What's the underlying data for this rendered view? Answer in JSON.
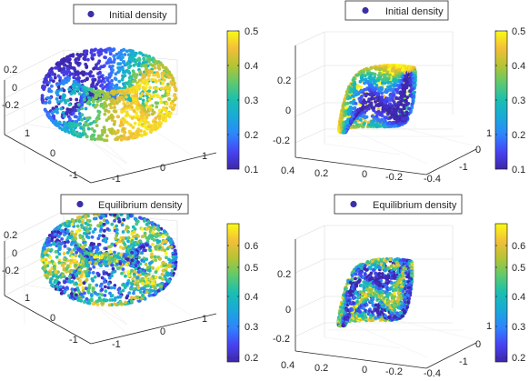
{
  "figure": {
    "colormap": [
      "#3e26a8",
      "#4743f4",
      "#2d85fe",
      "#19a9d9",
      "#19bfb1",
      "#5fc96e",
      "#b4c433",
      "#f3bf39",
      "#f9fb14"
    ],
    "marker_color": "#3b2fa8",
    "grid_color": "#d9d9d9",
    "axis_color": "#262626"
  },
  "chart_data": [
    {
      "type": "scatter3d",
      "shape": "torus",
      "legend": [
        "Initial density"
      ],
      "xticks": [
        "-1",
        "0",
        "1"
      ],
      "yticks": [
        "-1",
        "0",
        "1"
      ],
      "zticks": [
        "-0.2",
        "0",
        "0.2"
      ],
      "zlim": [
        -0.3,
        0.3
      ],
      "colorbar": {
        "ticks": [
          "0.1",
          "0.2",
          "0.3",
          "0.4",
          "0.5"
        ],
        "range": [
          0.1,
          0.5
        ]
      },
      "value_range": [
        0.1,
        0.5
      ],
      "grid": true,
      "legend_location": "top"
    },
    {
      "type": "scatter3d",
      "shape": "klein",
      "legend": [
        "Initial density"
      ],
      "xticks": [
        "0.4",
        "0.2",
        "0",
        "-0.2",
        "-0.4"
      ],
      "yticks": [
        "-1",
        "0",
        "1"
      ],
      "zticks": [
        "-0.2",
        "0",
        "0.2"
      ],
      "zlim": [
        -0.3,
        0.3
      ],
      "colorbar": {
        "ticks": [
          "0.1",
          "0.2",
          "0.3",
          "0.4",
          "0.5"
        ],
        "range": [
          0.1,
          0.5
        ]
      },
      "value_range": [
        0.1,
        0.5
      ],
      "grid": true,
      "legend_location": "top"
    },
    {
      "type": "scatter3d",
      "shape": "torus",
      "legend": [
        "Equilibrium density"
      ],
      "xticks": [
        "-1",
        "0",
        "1"
      ],
      "yticks": [
        "-1",
        "0",
        "1"
      ],
      "zticks": [
        "-0.2",
        "0",
        "0.2"
      ],
      "zlim": [
        -0.3,
        0.3
      ],
      "colorbar": {
        "ticks": [
          "0.2",
          "0.3",
          "0.4",
          "0.5",
          "0.6"
        ],
        "range": [
          0.15,
          0.7
        ]
      },
      "value_range": [
        0.15,
        0.7
      ],
      "grid": true,
      "legend_location": "top"
    },
    {
      "type": "scatter3d",
      "shape": "klein",
      "legend": [
        "Equilibrium density"
      ],
      "xticks": [
        "0.4",
        "0.2",
        "0",
        "-0.2",
        "-0.4"
      ],
      "yticks": [
        "-1",
        "0",
        "1"
      ],
      "zticks": [
        "-0.2",
        "0",
        "0.2"
      ],
      "zlim": [
        -0.3,
        0.3
      ],
      "colorbar": {
        "ticks": [
          "0.2",
          "0.3",
          "0.4",
          "0.5",
          "0.6"
        ],
        "range": [
          0.15,
          0.7
        ]
      },
      "value_range": [
        0.15,
        0.7
      ],
      "grid": true,
      "legend_location": "top"
    }
  ]
}
